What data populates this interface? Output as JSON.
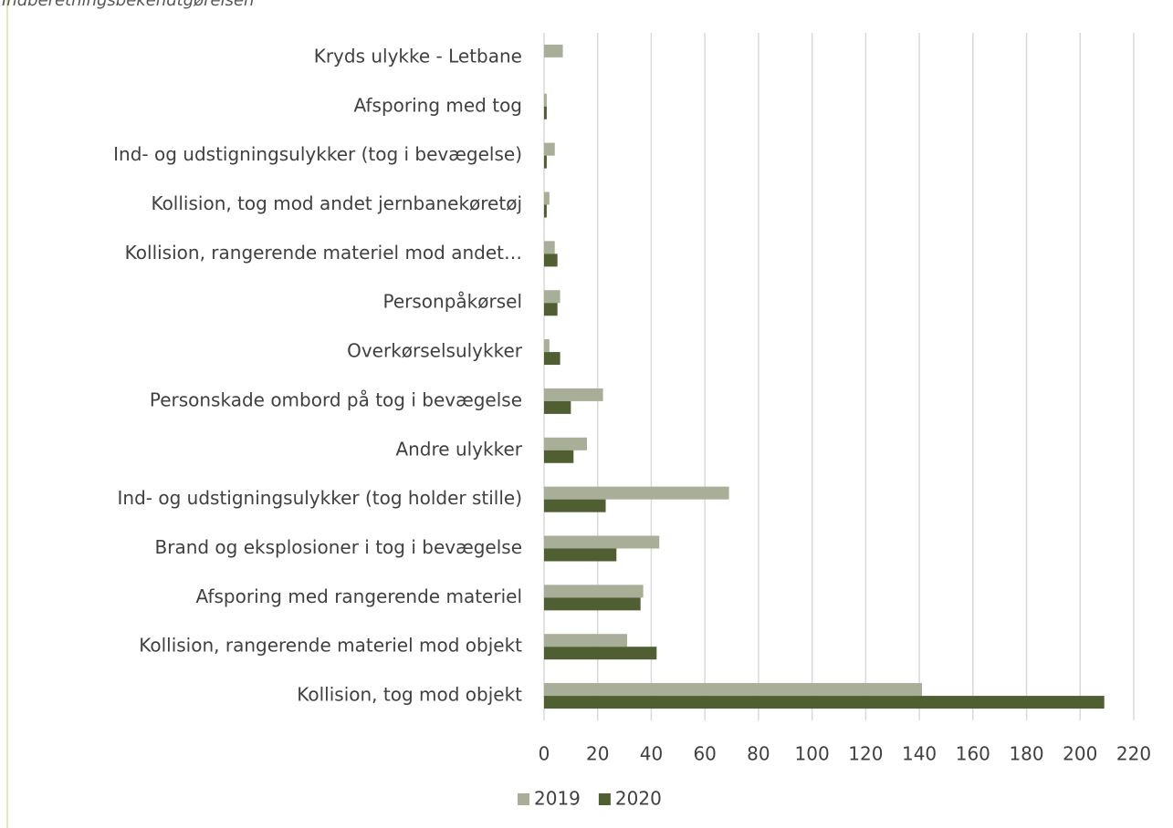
{
  "chart_data": {
    "type": "barh",
    "title": "Indberetningsbekendtgørelsen",
    "categories": [
      "Kryds ulykke - Letbane",
      "Afsporing med tog",
      "Ind- og udstigningsulykker (tog i bevægelse)",
      "Kollision, tog mod andet jernbanekøretøj",
      "Kollision, rangerende materiel mod andet…",
      "Personpåkørsel",
      "Overkørselsulykker",
      "Personskade ombord på tog i bevægelse",
      "Andre ulykker",
      "Ind- og udstigningsulykker (tog holder stille)",
      "Brand og eksplosioner i tog i bevægelse",
      "Afsporing med rangerende materiel",
      "Kollision, rangerende materiel mod objekt",
      "Kollision, tog mod objekt"
    ],
    "series": [
      {
        "name": "2019",
        "color": "#a9ae98",
        "values": [
          7,
          1,
          4,
          2,
          4,
          6,
          2,
          22,
          16,
          69,
          43,
          37,
          31,
          141
        ]
      },
      {
        "name": "2020",
        "color": "#4f5f32",
        "values": [
          0,
          1,
          1,
          1,
          5,
          5,
          6,
          10,
          11,
          23,
          27,
          36,
          42,
          209
        ]
      }
    ],
    "xlim": [
      0,
      220
    ],
    "xticks": [
      0,
      20,
      40,
      60,
      80,
      100,
      120,
      140,
      160,
      180,
      200,
      220
    ],
    "grid": true,
    "legend": "bottom"
  }
}
